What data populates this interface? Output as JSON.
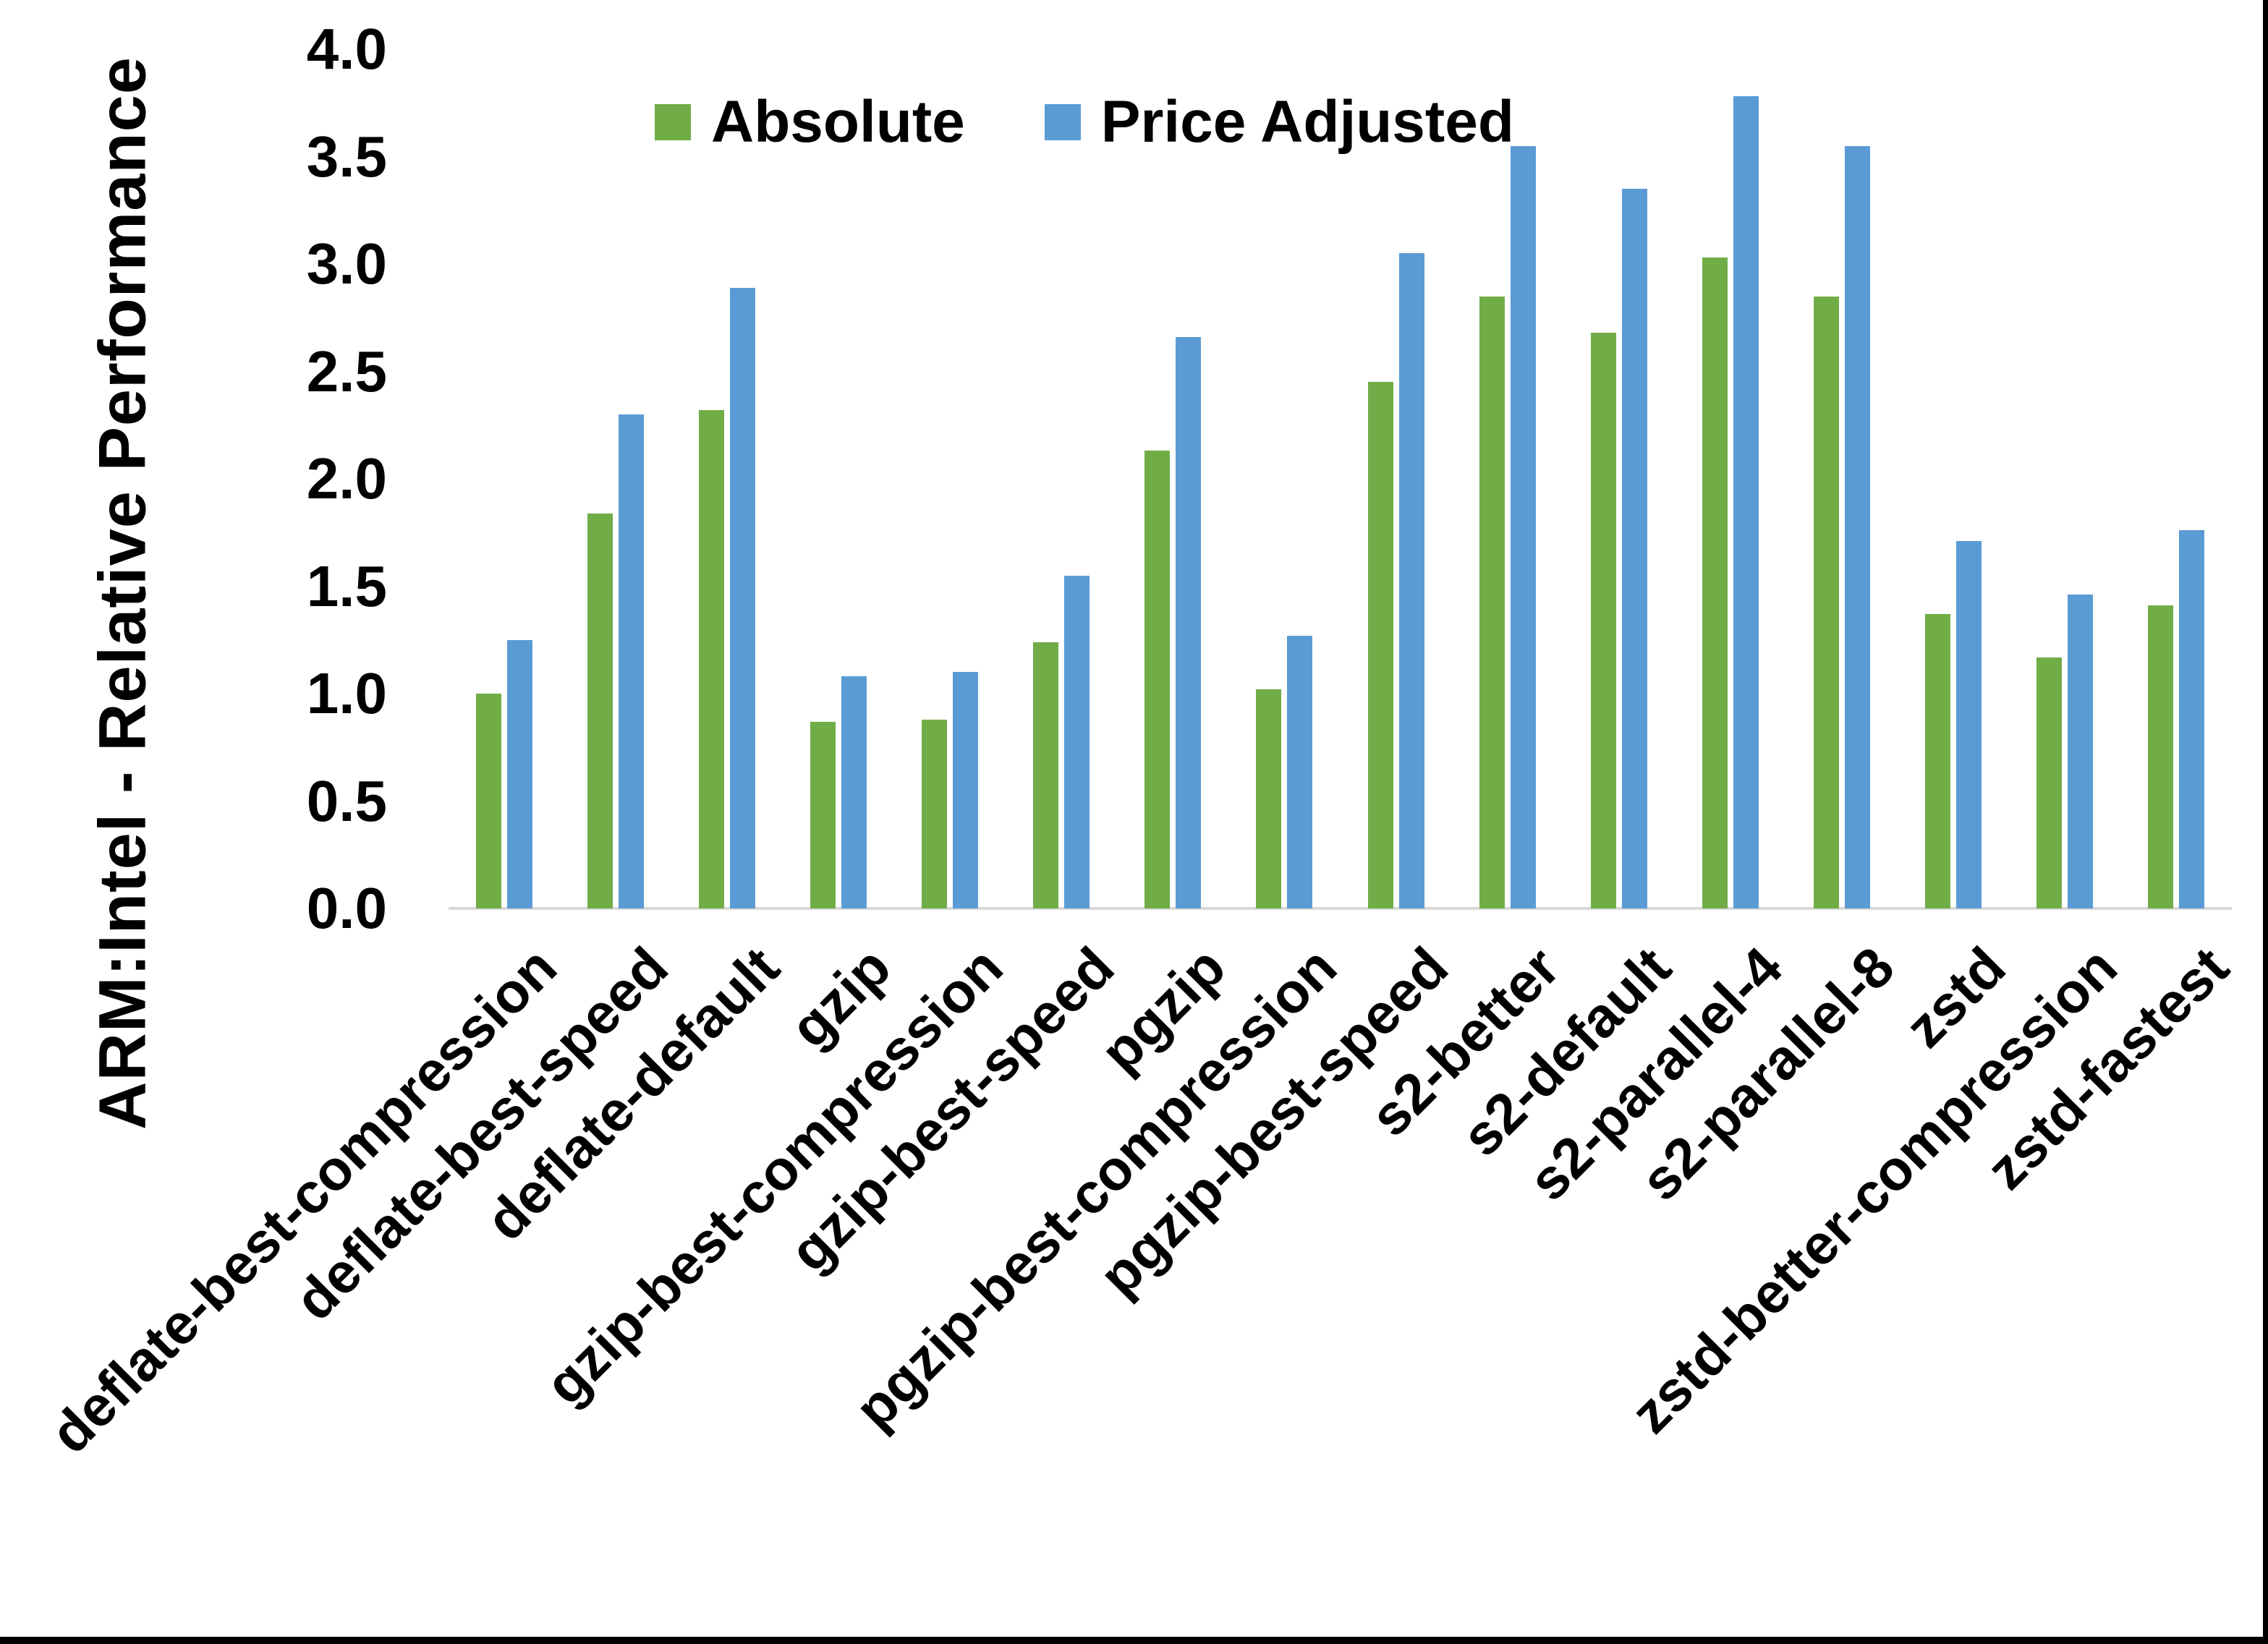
{
  "figure": {
    "background": "#FFFFFF",
    "frame_border_color": "#000000"
  },
  "chart_data": {
    "type": "bar",
    "title": "",
    "xlabel": "",
    "ylabel": "ARM:Intel - Relative Performance",
    "ylim": [
      0.0,
      4.0
    ],
    "ytick_step": 0.5,
    "ytick_labels": [
      "0.0",
      "0.5",
      "1.0",
      "1.5",
      "2.0",
      "2.5",
      "3.0",
      "3.5",
      "4.0"
    ],
    "grid": false,
    "axis_line_color": "#D9D9D9",
    "legend_position": "top-center",
    "categories": [
      "deflate-best-compression",
      "deflate-best-speed",
      "deflate-default",
      "gzip",
      "gzip-best-compression",
      "gzip-best-speed",
      "pgzip",
      "pgzip-best-compression",
      "pgzip-best-speed",
      "s2-better",
      "s2-default",
      "s2-parallel-4",
      "s2-parallel-8",
      "zstd",
      "zstd-better-compression",
      "zstd-fastest"
    ],
    "series": [
      {
        "name": "Absolute",
        "color": "#70AD47",
        "values": [
          1.0,
          1.84,
          2.32,
          0.87,
          0.88,
          1.24,
          2.13,
          1.02,
          2.45,
          2.85,
          2.68,
          3.03,
          2.85,
          1.37,
          1.17,
          1.41
        ]
      },
      {
        "name": "Price Adjusted",
        "color": "#5B9BD5",
        "values": [
          1.25,
          2.3,
          2.89,
          1.08,
          1.1,
          1.55,
          2.66,
          1.27,
          3.05,
          3.55,
          3.35,
          3.78,
          3.55,
          1.71,
          1.46,
          1.76
        ]
      }
    ]
  }
}
